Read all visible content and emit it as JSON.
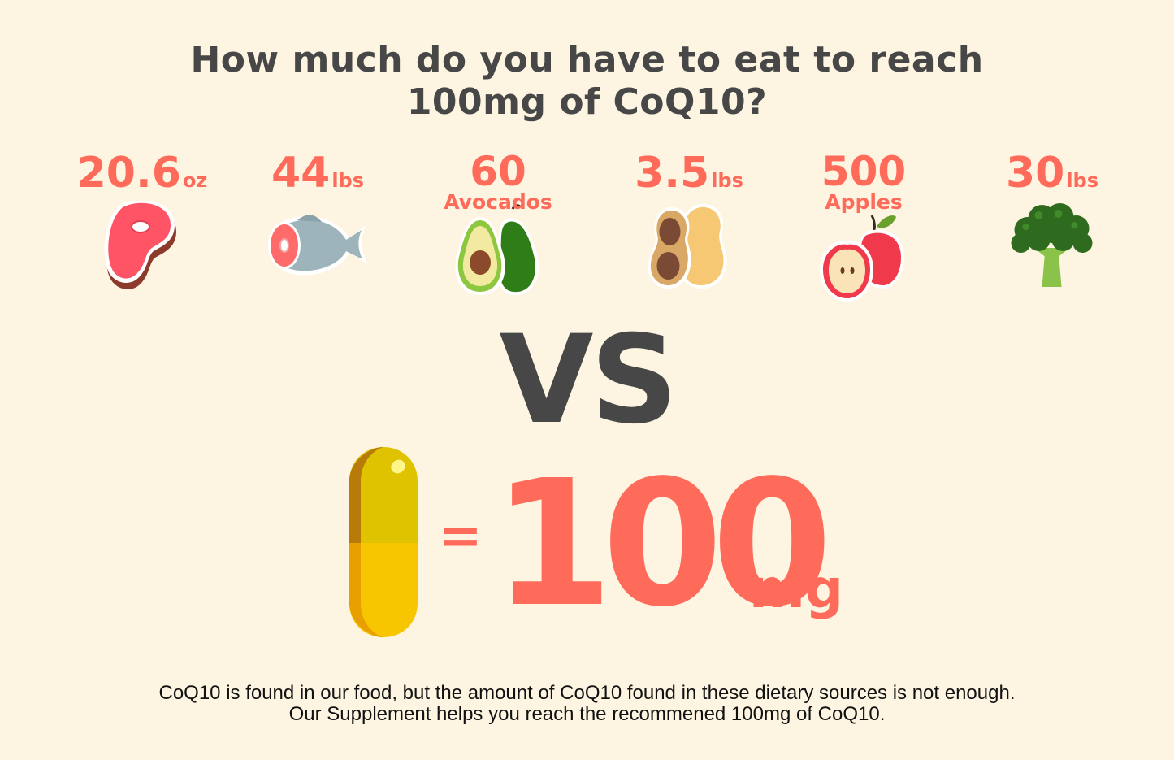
{
  "title": {
    "line1": "How much do you have to eat to reach",
    "line2": "100mg of CoQ10?"
  },
  "foods": [
    {
      "amount": "20.6",
      "unit": "oz",
      "icon": "steak-icon"
    },
    {
      "amount": "44",
      "unit": "lbs",
      "icon": "fish-icon"
    },
    {
      "amount": "60",
      "unit": "Avocados",
      "icon": "avocado-icon"
    },
    {
      "amount": "3.5",
      "unit": "lbs",
      "icon": "peanut-icon"
    },
    {
      "amount": "500",
      "unit": "Apples",
      "icon": "apple-icon"
    },
    {
      "amount": "30",
      "unit": "lbs",
      "icon": "broccoli-icon"
    }
  ],
  "vs_label": "VS",
  "supplement": {
    "icon": "capsule-icon",
    "equals": "=",
    "value": "100",
    "unit": "mg"
  },
  "footer": {
    "line1": "CoQ10 is found in our food, but the amount of CoQ10 found in these dietary sources is not enough.",
    "line2": "Our Supplement helps you reach the recommened 100mg of CoQ10."
  },
  "colors": {
    "background": "#fdf5e1",
    "accent": "#ff6b5a",
    "dark_text": "#474747"
  }
}
